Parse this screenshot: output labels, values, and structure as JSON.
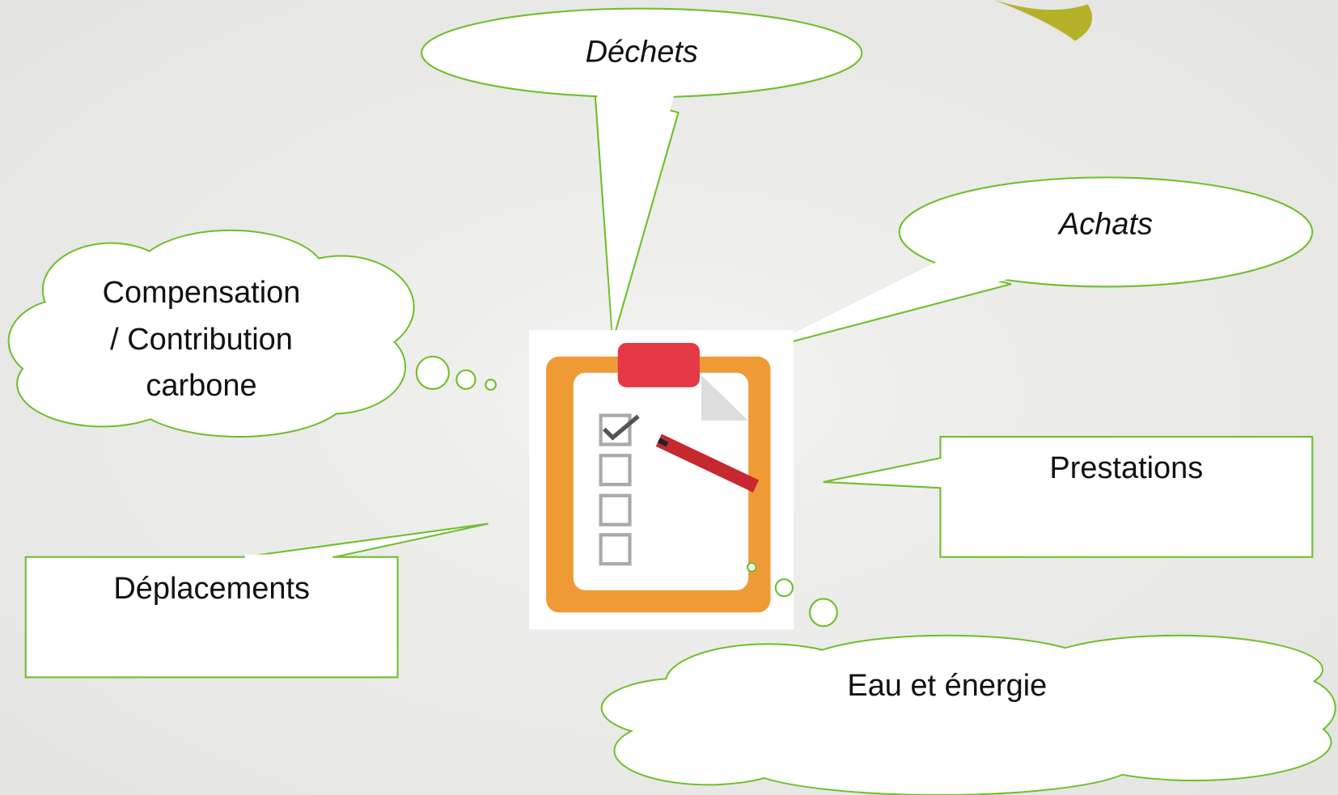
{
  "callouts": {
    "dechets": {
      "label": "Déchets"
    },
    "achats": {
      "label": "Achats"
    },
    "compensation": {
      "lines": [
        "Compensation",
        "/ Contribution",
        "carbone"
      ]
    },
    "prestations": {
      "label": "Prestations"
    },
    "deplacements": {
      "label": "Déplacements"
    },
    "eau": {
      "label": "Eau et énergie"
    }
  }
}
